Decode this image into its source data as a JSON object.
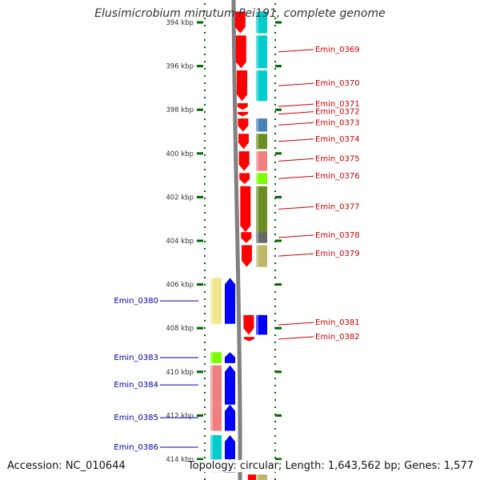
{
  "title": "Elusimicrobium minutum Pei191, complete genome",
  "footer": {
    "accession": "Accession: NC_010644",
    "summary": "Topology: circular; Length: 1,643,562 bp; Genes: 1,577"
  },
  "colors": {
    "cds": "#ff0000",
    "cds_reverse": "#0000ff",
    "forward_label": "#cc0000",
    "reverse_label": "#0000aa",
    "backbone": "#808080",
    "ticks": "#006400"
  },
  "axis": {
    "ticks": [
      {
        "kbp": 394,
        "label": "394 kbp"
      },
      {
        "kbp": 396,
        "label": "396 kbp"
      },
      {
        "kbp": 398,
        "label": "398 kbp"
      },
      {
        "kbp": 400,
        "label": "400 kbp"
      },
      {
        "kbp": 402,
        "label": "402 kbp"
      },
      {
        "kbp": 404,
        "label": "404 kbp"
      },
      {
        "kbp": 406,
        "label": "406 kbp"
      },
      {
        "kbp": 408,
        "label": "408 kbp"
      },
      {
        "kbp": 410,
        "label": "410 kbp"
      },
      {
        "kbp": 412,
        "label": "412 kbp"
      },
      {
        "kbp": 414,
        "label": "414 kbp"
      }
    ]
  },
  "forward_genes": [
    {
      "label": "",
      "start": 393.5,
      "end": 394.5,
      "cog": "#00cccc"
    },
    {
      "label": "Emin_0369",
      "start": 394.6,
      "end": 396.1,
      "cog": "#00cccc"
    },
    {
      "label": "Emin_0370",
      "start": 396.2,
      "end": 397.6,
      "cog": "#00cccc"
    },
    {
      "label": "Emin_0371",
      "start": 397.7,
      "end": 398.0,
      "cog": ""
    },
    {
      "label": "Emin_0372",
      "start": 398.1,
      "end": 398.3,
      "cog": ""
    },
    {
      "label": "Emin_0373",
      "start": 398.4,
      "end": 399.0,
      "cog": "#4682b4"
    },
    {
      "label": "Emin_0374",
      "start": 399.1,
      "end": 399.8,
      "cog": "#6b8e23"
    },
    {
      "label": "Emin_0375",
      "start": 399.9,
      "end": 400.8,
      "cog": "#f08080"
    },
    {
      "label": "Emin_0376",
      "start": 400.9,
      "end": 401.4,
      "cog": "#7cfc00"
    },
    {
      "label": "Emin_0377",
      "start": 401.5,
      "end": 403.6,
      "cog": "#6b8e23"
    },
    {
      "label": "Emin_0378",
      "start": 403.6,
      "end": 404.1,
      "cog": "#696969"
    },
    {
      "label": "Emin_0379",
      "start": 404.2,
      "end": 405.2,
      "cog": "#bdb76b"
    },
    {
      "label": "Emin_0381",
      "start": 407.4,
      "end": 408.3,
      "cog": "#0000ff"
    },
    {
      "label": "Emin_0382",
      "start": 408.4,
      "end": 408.6,
      "cog": ""
    },
    {
      "label": "",
      "start": 414.7,
      "end": 415.2,
      "cog": "#bdb76b"
    }
  ],
  "reverse_genes": [
    {
      "label": "Emin_0380",
      "start": 405.7,
      "end": 407.8,
      "cog": "#f0e68c"
    },
    {
      "label": "Emin_0383",
      "start": 409.1,
      "end": 409.6,
      "cog": "#7cfc00"
    },
    {
      "label": "Emin_0384",
      "start": 409.7,
      "end": 411.5,
      "cog": "#f08080"
    },
    {
      "label": "Emin_0385",
      "start": 411.5,
      "end": 412.7,
      "cog": "#f08080"
    },
    {
      "label": "Emin_0386",
      "start": 412.9,
      "end": 414.0,
      "cog": "#00cccc"
    },
    {
      "label": "",
      "start": 414.0,
      "end": 414.6,
      "cog": "#c8c8ff"
    }
  ]
}
